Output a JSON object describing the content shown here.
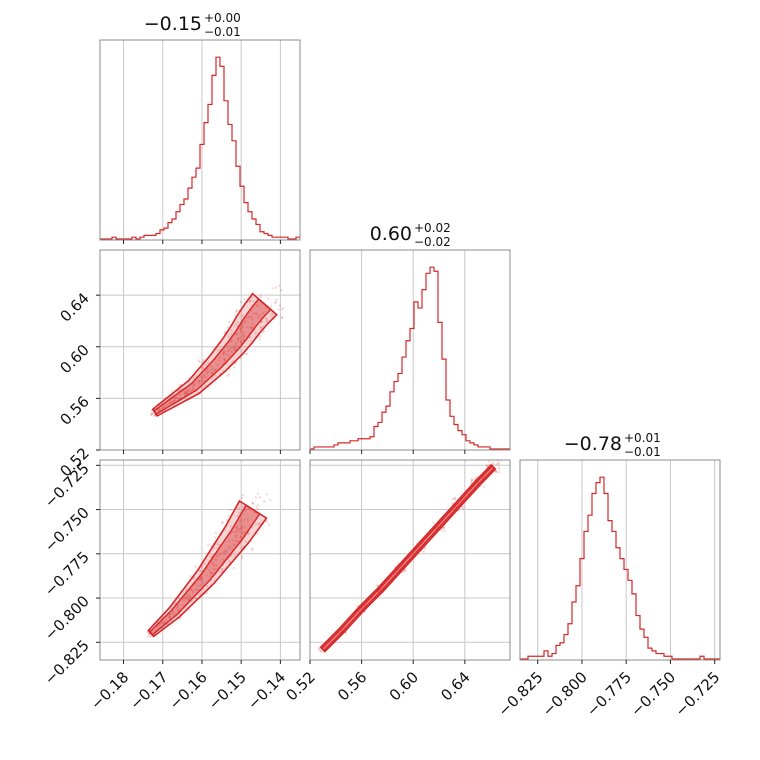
{
  "chart_data": {
    "type": "corner",
    "color": "#d62728",
    "parameters": [
      {
        "median": -0.15,
        "err_plus": 0.0,
        "err_minus": 0.01,
        "range": [
          -0.186,
          -0.135
        ]
      },
      {
        "median": 0.6,
        "err_plus": 0.02,
        "err_minus": 0.02,
        "range": [
          0.52,
          0.675
        ]
      },
      {
        "median": -0.78,
        "err_plus": 0.01,
        "err_minus": 0.01,
        "range": [
          -0.835,
          -0.722
        ]
      }
    ],
    "titles": [
      {
        "main": "−0.15",
        "sup": "+0.00",
        "sub": "−0.01"
      },
      {
        "main": "0.60",
        "sup": "+0.02",
        "sub": "−0.02"
      },
      {
        "main": "−0.78",
        "sup": "+0.01",
        "sub": "−0.01"
      }
    ],
    "ticks": [
      {
        "values": [
          -0.18,
          -0.17,
          -0.16,
          -0.15,
          -0.14
        ],
        "labels": [
          "−0.18",
          "−0.17",
          "−0.16",
          "−0.15",
          "−0.14"
        ]
      },
      {
        "values": [
          0.52,
          0.56,
          0.6,
          0.64
        ],
        "labels": [
          "0.52",
          "0.56",
          "0.60",
          "0.64"
        ]
      },
      {
        "values": [
          -0.825,
          -0.8,
          -0.775,
          -0.75,
          -0.725
        ],
        "labels": [
          "−0.825",
          "−0.800",
          "−0.775",
          "−0.750",
          "−0.725"
        ]
      }
    ],
    "histograms": [
      {
        "parameter": 0,
        "bins": [
          -0.186,
          -0.135
        ],
        "counts": [
          0,
          0,
          0,
          1,
          0,
          0,
          0,
          0,
          1,
          0,
          1,
          2,
          2,
          2,
          3,
          5,
          6,
          9,
          11,
          15,
          19,
          22,
          28,
          34,
          39,
          52,
          64,
          74,
          90,
          100,
          95,
          76,
          63,
          54,
          40,
          29,
          20,
          15,
          11,
          8,
          4,
          3,
          2,
          1,
          1,
          1,
          1,
          0,
          0,
          1
        ]
      },
      {
        "parameter": 1,
        "bins": [
          0.52,
          0.675
        ],
        "counts": [
          0,
          1,
          1,
          1,
          1,
          1,
          2,
          3,
          3,
          3,
          4,
          4,
          5,
          5,
          5,
          6,
          11,
          13,
          18,
          21,
          28,
          33,
          37,
          45,
          53,
          59,
          72,
          69,
          78,
          86,
          89,
          87,
          62,
          44,
          24,
          16,
          12,
          9,
          7,
          4,
          3,
          2,
          1,
          1,
          1,
          0,
          0,
          0,
          0,
          0
        ]
      },
      {
        "parameter": 2,
        "bins": [
          -0.835,
          -0.722
        ],
        "counts": [
          0,
          0,
          1,
          1,
          1,
          1,
          3,
          1,
          2,
          5,
          6,
          9,
          13,
          21,
          27,
          37,
          47,
          53,
          61,
          65,
          67,
          61,
          51,
          47,
          41,
          37,
          33,
          29,
          24,
          16,
          11,
          8,
          4,
          3,
          2,
          2,
          1,
          1,
          0,
          0,
          0,
          0,
          0,
          0,
          0,
          1,
          0,
          0,
          0,
          0
        ]
      }
    ],
    "scatter_2d": [
      {
        "x_param": 0,
        "y_param": 1,
        "points": [
          [
            -0.172,
            0.549
          ],
          [
            -0.17,
            0.553
          ],
          [
            -0.168,
            0.557
          ],
          [
            -0.166,
            0.561
          ],
          [
            -0.164,
            0.565
          ],
          [
            -0.162,
            0.569
          ],
          [
            -0.16,
            0.575
          ],
          [
            -0.158,
            0.581
          ],
          [
            -0.156,
            0.587
          ],
          [
            -0.154,
            0.594
          ],
          [
            -0.152,
            0.601
          ],
          [
            -0.15,
            0.609
          ],
          [
            -0.148,
            0.618
          ],
          [
            -0.146,
            0.626
          ],
          [
            -0.144,
            0.633
          ]
        ]
      },
      {
        "x_param": 0,
        "y_param": 2,
        "points": [
          [
            -0.173,
            -0.82
          ],
          [
            -0.171,
            -0.816
          ],
          [
            -0.169,
            -0.812
          ],
          [
            -0.167,
            -0.808
          ],
          [
            -0.165,
            -0.803
          ],
          [
            -0.163,
            -0.798
          ],
          [
            -0.161,
            -0.793
          ],
          [
            -0.159,
            -0.788
          ],
          [
            -0.157,
            -0.782
          ],
          [
            -0.155,
            -0.776
          ],
          [
            -0.153,
            -0.77
          ],
          [
            -0.151,
            -0.764
          ],
          [
            -0.149,
            -0.757
          ],
          [
            -0.147,
            -0.75
          ]
        ]
      },
      {
        "x_param": 1,
        "y_param": 2,
        "points": [
          [
            0.53,
            -0.829
          ],
          [
            0.545,
            -0.818
          ],
          [
            0.56,
            -0.806
          ],
          [
            0.575,
            -0.795
          ],
          [
            0.59,
            -0.783
          ],
          [
            0.605,
            -0.771
          ],
          [
            0.62,
            -0.759
          ],
          [
            0.635,
            -0.747
          ],
          [
            0.65,
            -0.735
          ],
          [
            0.662,
            -0.726
          ]
        ]
      }
    ],
    "grid": true,
    "xlabel": "",
    "ylabel": ""
  }
}
